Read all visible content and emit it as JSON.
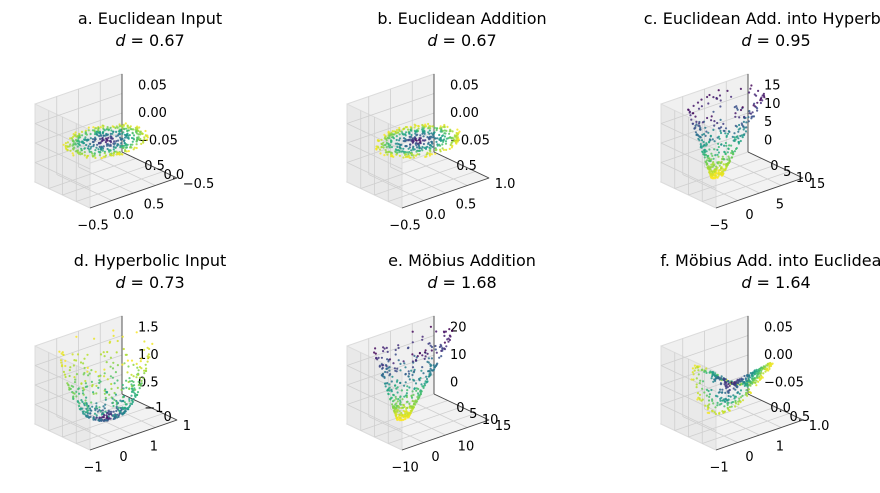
{
  "chart_data": [
    {
      "type": "scatter",
      "title": "a. Euclidean Input",
      "subtitle_label": "d",
      "subtitle_value": "0.67",
      "colormap": "viridis",
      "x_ticks": [
        "−0.5",
        "0.0",
        "0.5"
      ],
      "y_ticks": [
        "−0.5",
        "0.0",
        "0.5"
      ],
      "z_ticks": [
        "0.05",
        "0.00",
        "−0.05"
      ],
      "shape": "flat-disk",
      "xlim": [
        -0.6,
        0.6
      ],
      "ylim": [
        -0.6,
        0.6
      ],
      "zlim": [
        -0.06,
        0.06
      ]
    },
    {
      "type": "scatter",
      "title": "b. Euclidean Addition",
      "subtitle_label": "d",
      "subtitle_value": "0.67",
      "colormap": "viridis",
      "x_ticks": [
        "−0.5",
        "0.0",
        "0.5"
      ],
      "y_ticks": [
        "1.0",
        "0.5"
      ],
      "z_ticks": [
        "0.05",
        "0.00",
        "−0.05"
      ],
      "shape": "flat-disk",
      "xlim": [
        -0.6,
        0.6
      ],
      "ylim": [
        0.4,
        1.4
      ],
      "zlim": [
        -0.06,
        0.06
      ]
    },
    {
      "type": "scatter",
      "title": "c. Euclidean Add. into Hyperbolic",
      "subtitle_label": "d",
      "subtitle_value": "0.95",
      "colormap": "viridis",
      "x_ticks": [
        "−5",
        "0",
        "5"
      ],
      "y_ticks": [
        "15",
        "10",
        "5",
        "0"
      ],
      "z_ticks": [
        "15",
        "10",
        "5",
        "0"
      ],
      "shape": "cone",
      "xlim": [
        -8,
        8
      ],
      "ylim": [
        0,
        17
      ],
      "zlim": [
        0,
        17
      ]
    },
    {
      "type": "scatter",
      "title": "d. Hyperbolic Input",
      "subtitle_label": "d",
      "subtitle_value": "0.73",
      "colormap": "viridis",
      "x_ticks": [
        "−1",
        "0",
        "1"
      ],
      "y_ticks": [
        "1",
        "0",
        "−1"
      ],
      "z_ticks": [
        "1.5",
        "1.0",
        "0.5"
      ],
      "shape": "bowl",
      "xlim": [
        -1.3,
        1.3
      ],
      "ylim": [
        -1.3,
        1.3
      ],
      "zlim": [
        0.2,
        1.6
      ]
    },
    {
      "type": "scatter",
      "title": "e. Möbius Addition",
      "subtitle_label": "d",
      "subtitle_value": "1.68",
      "colormap": "viridis",
      "x_ticks": [
        "−10",
        "0",
        "10"
      ],
      "y_ticks": [
        "15",
        "10",
        "5",
        "0"
      ],
      "z_ticks": [
        "20",
        "10",
        "0"
      ],
      "shape": "cone",
      "xlim": [
        -15,
        15
      ],
      "ylim": [
        0,
        18
      ],
      "zlim": [
        0,
        21
      ]
    },
    {
      "type": "scatter",
      "title": "f. Möbius Add. into Euclidean",
      "subtitle_label": "d",
      "subtitle_value": "1.64",
      "colormap": "viridis",
      "x_ticks": [
        "−1",
        "0",
        "1"
      ],
      "y_ticks": [
        "1.0",
        "0.5",
        "0.0"
      ],
      "z_ticks": [
        "0.05",
        "0.00",
        "−0.05"
      ],
      "shape": "warped-disk",
      "xlim": [
        -1.3,
        1.3
      ],
      "ylim": [
        -0.2,
        1.3
      ],
      "zlim": [
        -0.06,
        0.06
      ]
    }
  ]
}
